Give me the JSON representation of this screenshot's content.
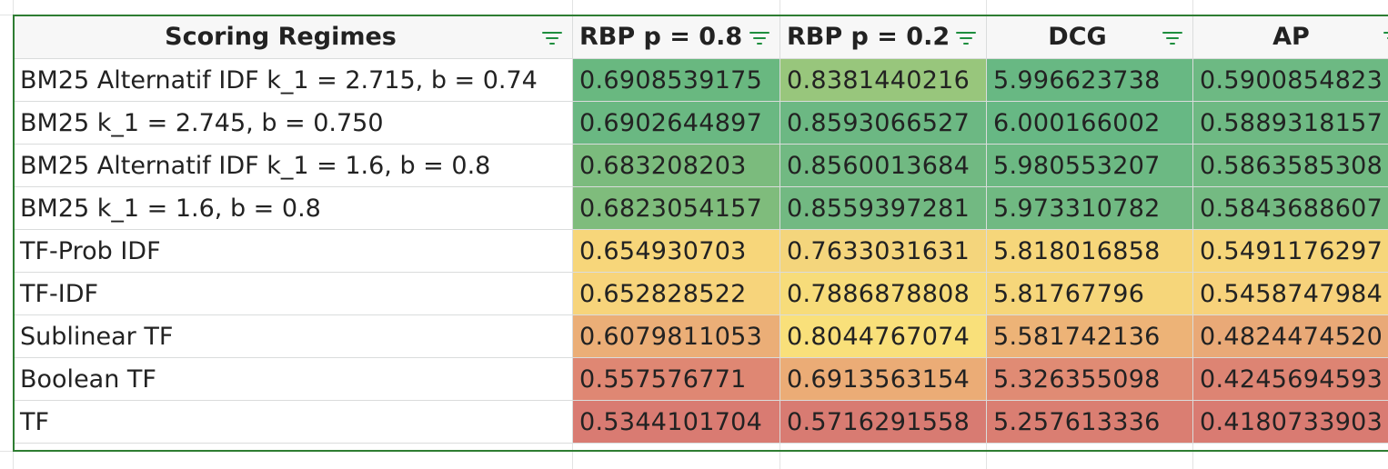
{
  "sheet": {
    "headers": [
      {
        "label": "Scoring Regimes",
        "align": "center"
      },
      {
        "label": "RBP p = 0.8",
        "align": "left"
      },
      {
        "label": "RBP p = 0.2",
        "align": "left"
      },
      {
        "label": "DCG",
        "align": "center"
      },
      {
        "label": "AP",
        "align": "center"
      }
    ],
    "rows": [
      {
        "label": "BM25 Alternatif IDF k_1 = 2.715, b = 0.74",
        "values": [
          "0.6908539175",
          "0.8381440216",
          "5.996623738",
          "0.5900854823"
        ],
        "colors": [
          "#69b880",
          "#98c67c",
          "#68b883",
          "#6db983"
        ]
      },
      {
        "label": "BM25 k_1 = 2.745, b = 0.750",
        "values": [
          "0.6902644897",
          "0.8593066527",
          "6.000166002",
          "0.5889318157"
        ],
        "colors": [
          "#6ab882",
          "#6cb883",
          "#67b884",
          "#6eb983"
        ]
      },
      {
        "label": "BM25 Alternatif IDF k_1 = 1.6, b = 0.8",
        "values": [
          "0.683208203",
          "0.8560013684",
          "5.980553207",
          "0.5863585308"
        ],
        "colors": [
          "#7bbb7d",
          "#71b982",
          "#6cb983",
          "#71ba82"
        ]
      },
      {
        "label": "BM25 k_1 = 1.6, b = 0.8",
        "values": [
          "0.6823054157",
          "0.8559397281",
          "5.973310782",
          "0.5843688607"
        ],
        "colors": [
          "#7fbc7c",
          "#72b982",
          "#70b982",
          "#74ba82"
        ]
      },
      {
        "label": "TF-Prob IDF",
        "values": [
          "0.654930703",
          "0.7633031631",
          "5.818016858",
          "0.5491176297"
        ],
        "colors": [
          "#f7d67a",
          "#f4d57c",
          "#f6d67a",
          "#f6d67a"
        ]
      },
      {
        "label": "TF-IDF",
        "values": [
          "0.652828522",
          "0.7886878808",
          "5.81767796",
          "0.5458747984"
        ],
        "colors": [
          "#f7d47b",
          "#f7dc7a",
          "#f6d67a",
          "#f7d27b"
        ]
      },
      {
        "label": "Sublinear TF",
        "values": [
          "0.6079811053",
          "0.8044767074",
          "5.581742136",
          "0.4824474520"
        ],
        "colors": [
          "#ebae77",
          "#f9e07a",
          "#edb377",
          "#e9a977"
        ]
      },
      {
        "label": "Boolean TF",
        "values": [
          "0.557576771",
          "0.6913563154",
          "5.326355098",
          "0.4245694593"
        ],
        "colors": [
          "#df8773",
          "#ebac76",
          "#e08b74",
          "#dd8473"
        ]
      },
      {
        "label": "TF",
        "values": [
          "0.5344101704",
          "0.5716291558",
          "5.257613336",
          "0.4180733903"
        ],
        "colors": [
          "#d97b72",
          "#d87b72",
          "#da7e72",
          "#d97b72"
        ]
      }
    ]
  }
}
